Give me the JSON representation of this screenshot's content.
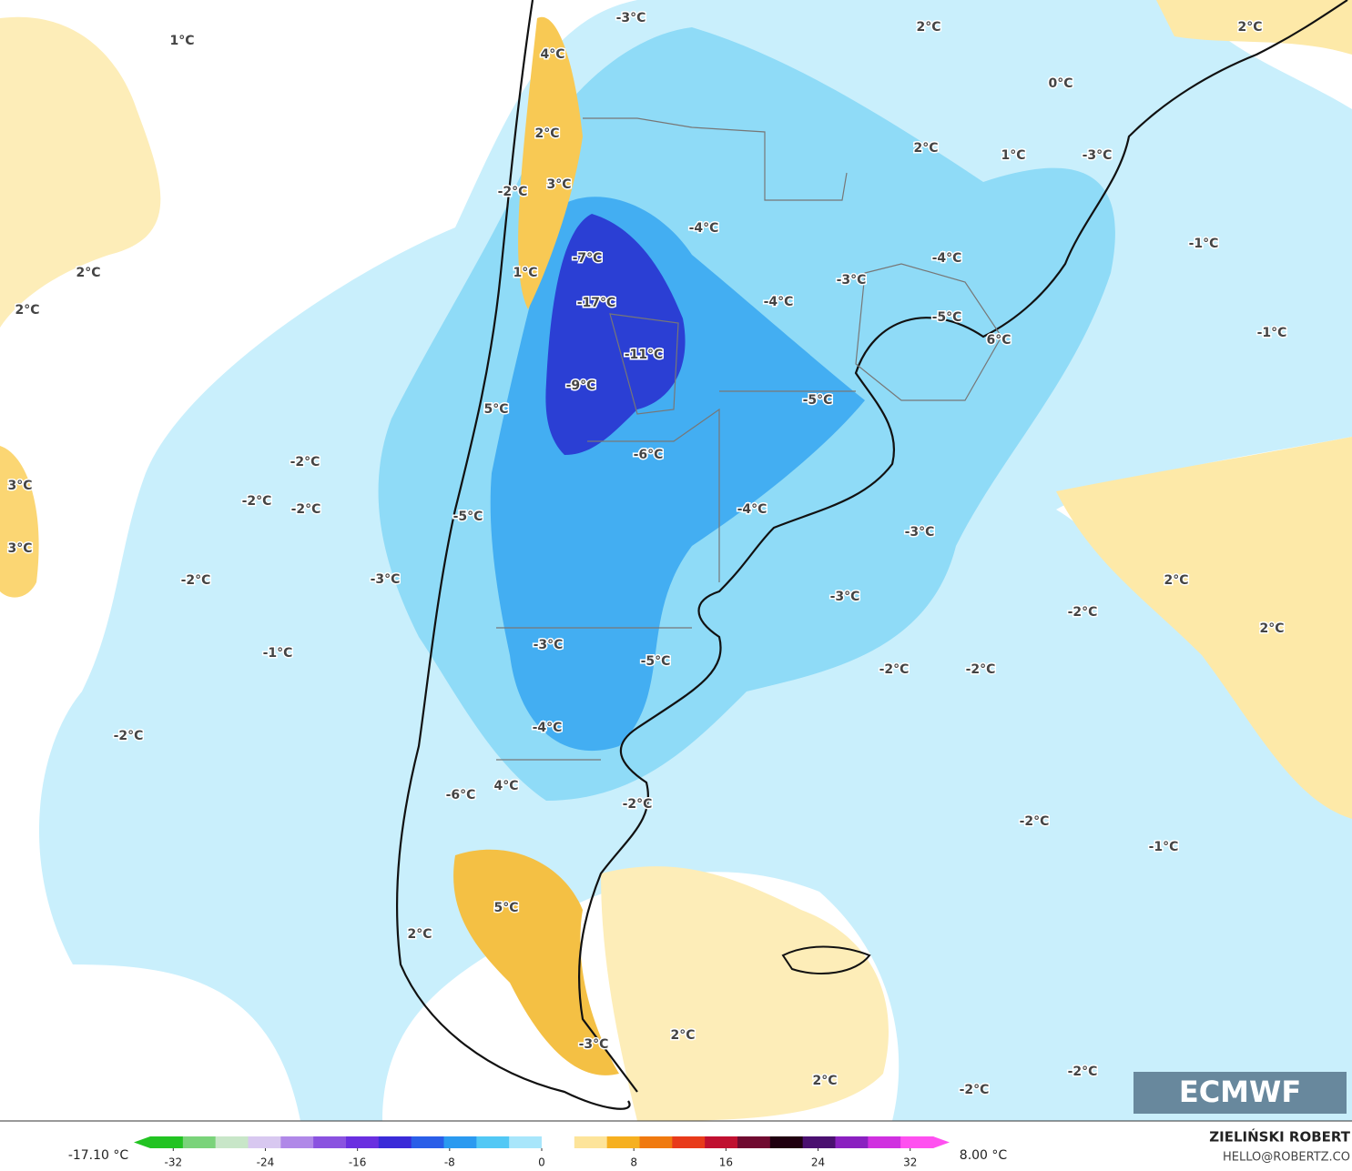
{
  "map": {
    "labels": [
      "1°C",
      "-3°C",
      "2°C",
      "2°C",
      "4°C",
      "0°C",
      "2°C",
      "2°C",
      "1°C",
      "-3°C",
      "-2°C",
      "3°C",
      "-4°C",
      "-7°C",
      "-4°C",
      "-1°C",
      "2°C",
      "1°C",
      "-17°C",
      "-4°C",
      "-3°C",
      "2°C",
      "-5°C",
      "-1°C",
      "6°C",
      "-11°C",
      "-9°C",
      "-5°C",
      "5°C",
      "-6°C",
      "-2°C",
      "3°C",
      "-2°C",
      "-2°C",
      "-4°C",
      "-5°C",
      "-3°C",
      "3°C",
      "-2°C",
      "-3°C",
      "2°C",
      "-3°C",
      "-2°C",
      "2°C",
      "-3°C",
      "-1°C",
      "-5°C",
      "-2°C",
      "-2°C",
      "-2°C",
      "-4°C",
      "4°C",
      "-6°C",
      "-2°C",
      "-2°C",
      "-1°C",
      "5°C",
      "2°C",
      "2°C",
      "-3°C",
      "2°C",
      "-2°C",
      "-2°C"
    ],
    "logo": "ECMWF"
  },
  "colorbar": {
    "min_label": "-17.10 °C",
    "max_label": "8.00 °C",
    "lim": [
      -34,
      34
    ],
    "ticks": [
      -32,
      -24,
      -16,
      -8,
      0,
      8,
      16,
      24,
      32
    ],
    "colors": [
      "#22c322",
      "#7ad37a",
      "#c8e6c8",
      "#d8c8f0",
      "#b088e8",
      "#8a52e0",
      "#6a2fe0",
      "#3a2ad8",
      "#2a5ee8",
      "#2b9af0",
      "#52c8f5",
      "#a8e6fb",
      "#ffffff",
      "#fde49a",
      "#f6b020",
      "#f07a10",
      "#e83a1a",
      "#c01030",
      "#700a30",
      "#200010",
      "#4a1070",
      "#8a20c0",
      "#d030e0",
      "#ff50f0"
    ]
  },
  "credit": {
    "author": "ZIELIŃSKI ROBERT",
    "contact": "HELLO@ROBERTZ.CO"
  }
}
